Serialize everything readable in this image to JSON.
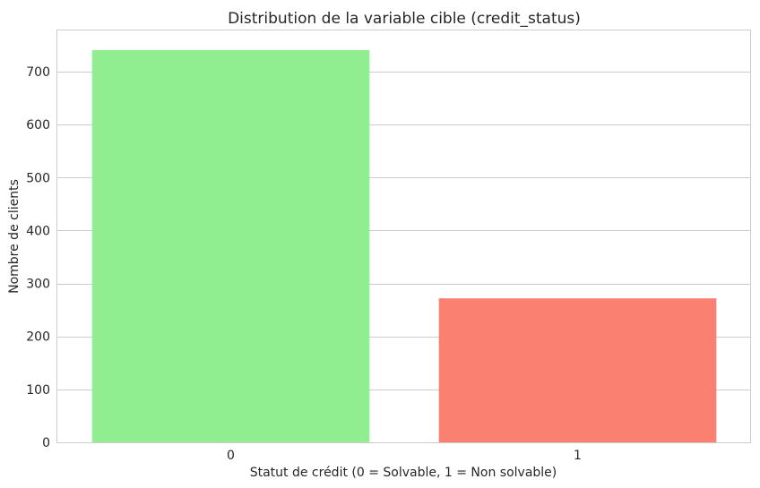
{
  "chart_data": {
    "type": "bar",
    "title": "Distribution de la variable cible (credit_status)",
    "xlabel": "Statut de crédit (0 = Solvable, 1 = Non solvable)",
    "ylabel": "Nombre de clients",
    "categories": [
      "0",
      "1"
    ],
    "values": [
      741,
      272
    ],
    "colors": [
      "#90ee90",
      "#fa8072"
    ],
    "ylim": [
      0,
      778
    ],
    "yticks": [
      0,
      100,
      200,
      300,
      400,
      500,
      600,
      700
    ],
    "grid": "horizontal",
    "legend": "none"
  }
}
